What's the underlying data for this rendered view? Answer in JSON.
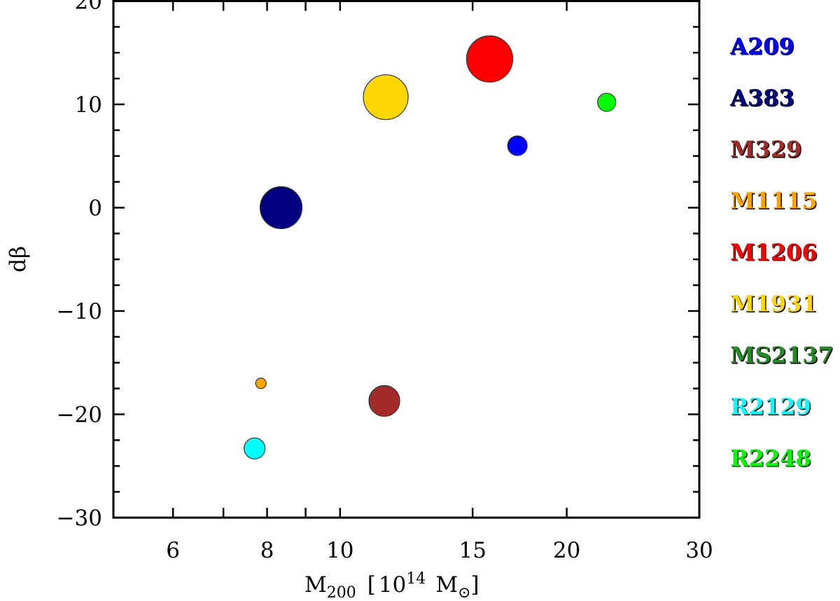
{
  "chart_data": {
    "type": "scatter",
    "title": "",
    "xlabel": "M200 [10^14 M☉]",
    "xlabel_parts": {
      "main": "M",
      "sub": "200",
      "bracket_open": "[",
      "base": "10",
      "sup": "14",
      "unit": "M",
      "unit_sub": "⊙",
      "bracket_close": "]"
    },
    "ylabel": "dβ",
    "xscale": "log",
    "xlim": [
      5,
      30
    ],
    "ylim": [
      -30,
      20
    ],
    "grid": false,
    "legend_position": "right-outside",
    "x_major_ticks": [
      6,
      8,
      10,
      15,
      20,
      30
    ],
    "x_minor_ticks": [
      7,
      9
    ],
    "x_tick_labels": [
      "6",
      "8",
      "10",
      "15",
      "20",
      "30"
    ],
    "y_major_ticks": [
      -30,
      -20,
      -10,
      0,
      10,
      20
    ],
    "y_tick_labels": [
      "−30",
      "−20",
      "−10",
      "0",
      "10",
      "20"
    ],
    "y_minor_step": 2.5,
    "series": [
      {
        "name": "A209",
        "color": "#0000ff",
        "x": 17.2,
        "y": 6.0,
        "radius_px": 14
      },
      {
        "name": "A383",
        "color": "#000080",
        "x": 8.35,
        "y": 0.0,
        "radius_px": 30
      },
      {
        "name": "M329",
        "color": "#a52a2a",
        "x": 11.45,
        "y": -18.7,
        "radius_px": 22
      },
      {
        "name": "M1115",
        "color": "#ffa500",
        "x": 7.85,
        "y": -17.0,
        "radius_px": 7.5
      },
      {
        "name": "M1206",
        "color": "#ff0000",
        "x": 15.8,
        "y": 14.4,
        "radius_px": 33
      },
      {
        "name": "M1931",
        "color": "#ffd700",
        "x": 11.5,
        "y": 10.7,
        "radius_px": 32
      },
      {
        "name": "MS2137",
        "color": "#228b22",
        "x": null,
        "y": null,
        "radius_px": 0
      },
      {
        "name": "R2129",
        "color": "#00ffff",
        "x": 7.7,
        "y": -23.3,
        "radius_px": 15
      },
      {
        "name": "R2248",
        "color": "#00ff00",
        "x": 22.6,
        "y": 10.2,
        "radius_px": 13
      }
    ]
  }
}
